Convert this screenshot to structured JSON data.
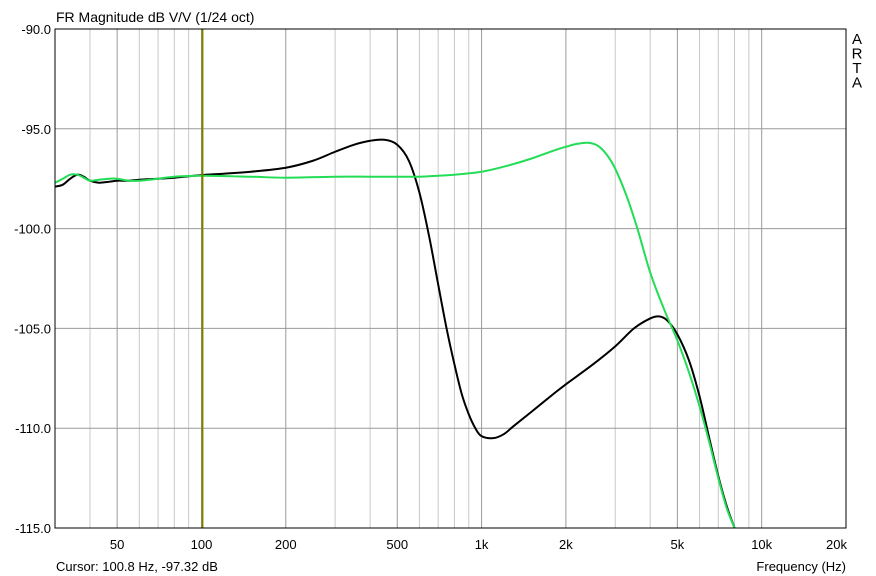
{
  "chart_data": {
    "type": "line",
    "title": "FR Magnitude dB V/V (1/24 oct)",
    "xlabel": "Frequency (Hz)",
    "ylabel": "",
    "xscale": "log",
    "xlim": [
      30,
      20000
    ],
    "ylim": [
      -115,
      -90
    ],
    "grid": true,
    "x_ticks": [
      {
        "value": 50,
        "label": "50"
      },
      {
        "value": 100,
        "label": "100"
      },
      {
        "value": 200,
        "label": "200"
      },
      {
        "value": 500,
        "label": "500"
      },
      {
        "value": 1000,
        "label": "1k"
      },
      {
        "value": 2000,
        "label": "2k"
      },
      {
        "value": 5000,
        "label": "5k"
      },
      {
        "value": 10000,
        "label": "10k"
      },
      {
        "value": 20000,
        "label": "20k"
      }
    ],
    "y_ticks": [
      {
        "value": -90,
        "label": "-90.0"
      },
      {
        "value": -95,
        "label": "-95.0"
      },
      {
        "value": -100,
        "label": "-100.0"
      },
      {
        "value": -105,
        "label": "-105.0"
      },
      {
        "value": -110,
        "label": "-110.0"
      },
      {
        "value": -115,
        "label": "-115.0"
      }
    ],
    "cursor": {
      "x": 100.8,
      "label": "Cursor: 100.8 Hz, -97.32 dB",
      "color": "#808000"
    },
    "watermark": [
      "A",
      "R",
      "T",
      "A"
    ],
    "series": [
      {
        "color": "#000000",
        "points": [
          [
            30,
            -97.9
          ],
          [
            32,
            -97.8
          ],
          [
            34,
            -97.5
          ],
          [
            36,
            -97.3
          ],
          [
            38,
            -97.4
          ],
          [
            40,
            -97.6
          ],
          [
            43,
            -97.7
          ],
          [
            47,
            -97.65
          ],
          [
            50,
            -97.6
          ],
          [
            55,
            -97.6
          ],
          [
            60,
            -97.55
          ],
          [
            70,
            -97.5
          ],
          [
            80,
            -97.45
          ],
          [
            100,
            -97.32
          ],
          [
            120,
            -97.25
          ],
          [
            150,
            -97.15
          ],
          [
            200,
            -96.95
          ],
          [
            250,
            -96.6
          ],
          [
            300,
            -96.15
          ],
          [
            350,
            -95.8
          ],
          [
            400,
            -95.6
          ],
          [
            450,
            -95.55
          ],
          [
            500,
            -95.8
          ],
          [
            550,
            -96.6
          ],
          [
            600,
            -98.2
          ],
          [
            650,
            -100.4
          ],
          [
            700,
            -102.8
          ],
          [
            750,
            -105.0
          ],
          [
            800,
            -106.8
          ],
          [
            850,
            -108.3
          ],
          [
            900,
            -109.3
          ],
          [
            950,
            -110.0
          ],
          [
            1000,
            -110.4
          ],
          [
            1100,
            -110.5
          ],
          [
            1200,
            -110.3
          ],
          [
            1300,
            -109.9
          ],
          [
            1500,
            -109.2
          ],
          [
            1800,
            -108.3
          ],
          [
            2000,
            -107.8
          ],
          [
            2500,
            -106.8
          ],
          [
            3000,
            -105.9
          ],
          [
            3500,
            -105.0
          ],
          [
            4000,
            -104.5
          ],
          [
            4300,
            -104.4
          ],
          [
            4600,
            -104.6
          ],
          [
            5000,
            -105.3
          ],
          [
            5500,
            -106.6
          ],
          [
            6000,
            -108.4
          ],
          [
            6500,
            -110.5
          ],
          [
            7000,
            -112.4
          ],
          [
            7500,
            -113.9
          ],
          [
            8000,
            -115.0
          ]
        ]
      },
      {
        "color": "#22dd55",
        "points": [
          [
            30,
            -97.7
          ],
          [
            32,
            -97.5
          ],
          [
            34,
            -97.3
          ],
          [
            36,
            -97.3
          ],
          [
            38,
            -97.45
          ],
          [
            40,
            -97.6
          ],
          [
            43,
            -97.55
          ],
          [
            47,
            -97.5
          ],
          [
            50,
            -97.5
          ],
          [
            55,
            -97.6
          ],
          [
            60,
            -97.6
          ],
          [
            70,
            -97.5
          ],
          [
            80,
            -97.4
          ],
          [
            100,
            -97.35
          ],
          [
            150,
            -97.4
          ],
          [
            200,
            -97.45
          ],
          [
            300,
            -97.4
          ],
          [
            400,
            -97.4
          ],
          [
            500,
            -97.4
          ],
          [
            600,
            -97.4
          ],
          [
            700,
            -97.35
          ],
          [
            800,
            -97.3
          ],
          [
            1000,
            -97.15
          ],
          [
            1200,
            -96.9
          ],
          [
            1500,
            -96.5
          ],
          [
            1800,
            -96.1
          ],
          [
            2000,
            -95.9
          ],
          [
            2200,
            -95.75
          ],
          [
            2400,
            -95.7
          ],
          [
            2600,
            -95.85
          ],
          [
            2800,
            -96.3
          ],
          [
            3000,
            -97.0
          ],
          [
            3300,
            -98.4
          ],
          [
            3600,
            -100.0
          ],
          [
            4000,
            -102.2
          ],
          [
            4500,
            -104.1
          ],
          [
            5000,
            -105.6
          ],
          [
            5500,
            -107.2
          ],
          [
            6000,
            -108.9
          ],
          [
            6500,
            -110.7
          ],
          [
            7000,
            -112.5
          ],
          [
            7500,
            -114.0
          ],
          [
            8000,
            -115.0
          ]
        ]
      }
    ]
  }
}
